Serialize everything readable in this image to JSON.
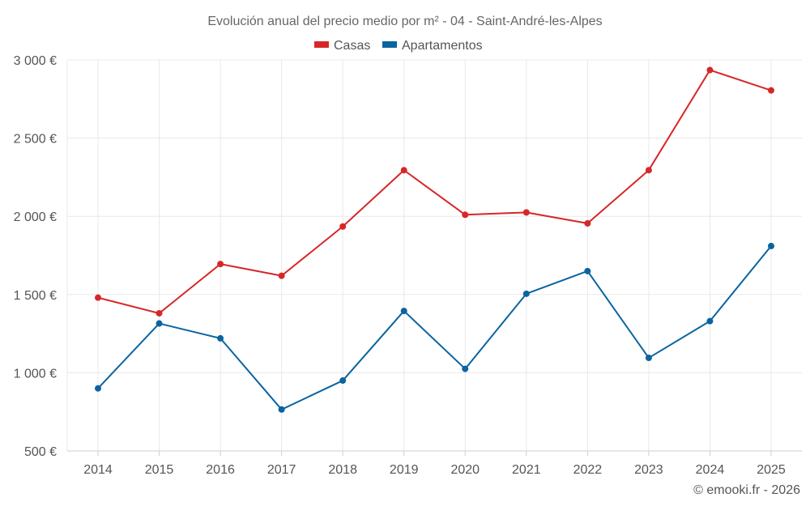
{
  "chart_data": {
    "type": "line",
    "title": "Evolución anual del precio medio por m² - 04 - Saint-André-les-Alpes",
    "xlabel": "",
    "ylabel": "",
    "categories": [
      "2014",
      "2015",
      "2016",
      "2017",
      "2018",
      "2019",
      "2020",
      "2021",
      "2022",
      "2023",
      "2024",
      "2025"
    ],
    "ylim": [
      500,
      3000
    ],
    "yticks": [
      500,
      1000,
      1500,
      2000,
      2500,
      3000
    ],
    "ytick_labels": [
      "500 €",
      "1 000 €",
      "1 500 €",
      "2 000 €",
      "2 500 €",
      "3 000 €"
    ],
    "grid": true,
    "legend_position": "top-center",
    "series": [
      {
        "name": "Casas",
        "color": "#d62728",
        "values": [
          1480,
          1380,
          1695,
          1620,
          1935,
          2295,
          2010,
          2025,
          1955,
          2295,
          2935,
          2805
        ]
      },
      {
        "name": "Apartamentos",
        "color": "#0a64a0",
        "values": [
          900,
          1315,
          1220,
          765,
          950,
          1395,
          1025,
          1505,
          1650,
          1095,
          1330,
          1810
        ]
      }
    ]
  },
  "credit": "© emooki.fr - 2026"
}
